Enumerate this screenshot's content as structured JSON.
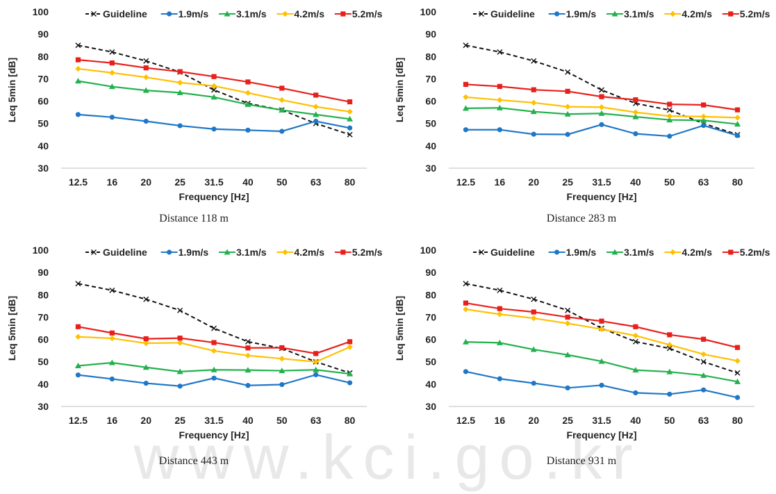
{
  "watermark": "www.kci.go.kr",
  "chart_data": [
    {
      "type": "line",
      "caption": "Distance 118 m",
      "xlabel": "Frequency [Hz]",
      "ylabel": "Leq 5min [dB]",
      "categories": [
        "12.5",
        "16",
        "20",
        "25",
        "31.5",
        "40",
        "50",
        "63",
        "80"
      ],
      "ylim": [
        30,
        100
      ],
      "yticks": [
        30,
        40,
        50,
        60,
        70,
        80,
        90,
        100
      ],
      "legend_position": "top",
      "series": [
        {
          "name": "Guideline",
          "values": [
            85,
            82,
            78,
            73,
            65,
            59,
            56,
            50,
            45
          ]
        },
        {
          "name": "1.9m/s",
          "values": [
            54,
            52.8,
            51,
            49,
            47.5,
            47,
            46.5,
            51,
            48
          ]
        },
        {
          "name": "3.1m/s",
          "values": [
            69,
            66.5,
            64.8,
            63.8,
            61.8,
            58.5,
            56,
            54,
            52
          ]
        },
        {
          "name": "4.2m/s",
          "values": [
            74.5,
            72.7,
            70.7,
            68.3,
            66.8,
            63.7,
            60.5,
            57.5,
            55.3
          ]
        },
        {
          "name": "5.2m/s",
          "values": [
            78.5,
            77.1,
            74.9,
            73.2,
            71,
            68.6,
            65.8,
            62.7,
            59.7
          ]
        }
      ]
    },
    {
      "type": "line",
      "caption": "Distance 283 m",
      "xlabel": "Frequency [Hz]",
      "ylabel": "Leq 5min [dB]",
      "categories": [
        "12.5",
        "16",
        "20",
        "25",
        "31.5",
        "40",
        "50",
        "63",
        "80"
      ],
      "ylim": [
        30,
        100
      ],
      "yticks": [
        30,
        40,
        50,
        60,
        70,
        80,
        90,
        100
      ],
      "legend_position": "top",
      "series": [
        {
          "name": "Guideline",
          "values": [
            85,
            82,
            78,
            73,
            65,
            59,
            56,
            50,
            45
          ]
        },
        {
          "name": "1.9m/s",
          "values": [
            47.2,
            47.2,
            45.2,
            45.1,
            49.5,
            45.4,
            44.3,
            49.1,
            44.6
          ]
        },
        {
          "name": "3.1m/s",
          "values": [
            56.8,
            57,
            55.3,
            54.2,
            54.5,
            53,
            51.6,
            51.4,
            49.7
          ]
        },
        {
          "name": "4.2m/s",
          "values": [
            61.8,
            60.5,
            59.3,
            57.5,
            57.3,
            55,
            53.3,
            53.1,
            52.6
          ]
        },
        {
          "name": "5.2m/s",
          "values": [
            67.5,
            66.6,
            65.1,
            64.4,
            62,
            60.6,
            58.6,
            58.3,
            56.1
          ]
        }
      ]
    },
    {
      "type": "line",
      "caption": "Distance 443 m",
      "xlabel": "Frequency [Hz]",
      "ylabel": "Leq 5min [dB]",
      "categories": [
        "12.5",
        "16",
        "20",
        "25",
        "31.5",
        "40",
        "50",
        "63",
        "80"
      ],
      "ylim": [
        30,
        100
      ],
      "yticks": [
        30,
        40,
        50,
        60,
        70,
        80,
        90,
        100
      ],
      "legend_position": "top",
      "series": [
        {
          "name": "Guideline",
          "values": [
            85,
            82,
            78,
            73,
            65,
            59,
            56,
            50,
            45
          ]
        },
        {
          "name": "1.9m/s",
          "values": [
            44.1,
            42.3,
            40.4,
            39.1,
            42.7,
            39.4,
            39.8,
            44.2,
            40.6
          ]
        },
        {
          "name": "3.1m/s",
          "values": [
            48.2,
            49.6,
            47.5,
            45.6,
            46.4,
            46.3,
            46,
            46.4,
            44.6
          ]
        },
        {
          "name": "4.2m/s",
          "values": [
            61.2,
            60.5,
            58.3,
            58.5,
            54.9,
            52.8,
            51.4,
            50,
            56.6
          ]
        },
        {
          "name": "5.2m/s",
          "values": [
            65.7,
            62.9,
            60.3,
            60.6,
            58.6,
            56.2,
            56.3,
            53.7,
            59
          ]
        }
      ]
    },
    {
      "type": "line",
      "caption": "Distance 931 m",
      "xlabel": "Frequency [Hz]",
      "ylabel": "Leq 5min [dB]",
      "categories": [
        "12.5",
        "16",
        "20",
        "25",
        "31.5",
        "40",
        "50",
        "63",
        "80"
      ],
      "ylim": [
        30,
        100
      ],
      "yticks": [
        30,
        40,
        50,
        60,
        70,
        80,
        90,
        100
      ],
      "legend_position": "top",
      "series": [
        {
          "name": "Guideline",
          "values": [
            85,
            82,
            78,
            73,
            65,
            59,
            56,
            50,
            45
          ]
        },
        {
          "name": "1.9m/s",
          "values": [
            45.6,
            42.4,
            40.4,
            38.3,
            39.5,
            36.1,
            35.5,
            37.4,
            34
          ]
        },
        {
          "name": "3.1m/s",
          "values": [
            58.9,
            58.5,
            55.5,
            53.1,
            50.2,
            46.3,
            45.5,
            43.9,
            41.1
          ]
        },
        {
          "name": "4.2m/s",
          "values": [
            73.5,
            71.3,
            69.5,
            67.2,
            64.6,
            61.7,
            57.6,
            53.4,
            50.4
          ]
        },
        {
          "name": "5.2m/s",
          "values": [
            76.3,
            73.8,
            72.3,
            70,
            68.2,
            65.7,
            62.1,
            60.1,
            56.4
          ]
        }
      ]
    }
  ],
  "styles": {
    "Guideline": {
      "color": "#111111",
      "dash": "6,4",
      "marker": "x"
    },
    "1.9m/s": {
      "color": "#1f77c8",
      "marker": "circle"
    },
    "3.1m/s": {
      "color": "#22b14c",
      "marker": "triangle"
    },
    "4.2m/s": {
      "color": "#ffc000",
      "marker": "diamond"
    },
    "5.2m/s": {
      "color": "#e8201c",
      "marker": "square"
    }
  }
}
